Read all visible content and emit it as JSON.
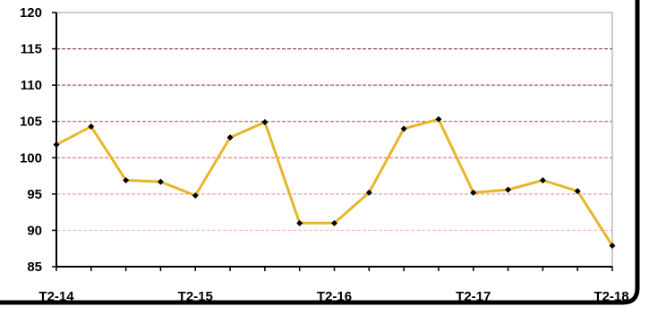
{
  "chart_data": {
    "type": "line",
    "title": "",
    "xlabel": "",
    "ylabel": "",
    "ylim": [
      85,
      120
    ],
    "yticks": [
      85,
      90,
      95,
      100,
      105,
      110,
      115,
      120
    ],
    "x_tick_labels": [
      {
        "index": 0,
        "label": "T2-14"
      },
      {
        "index": 4,
        "label": "T2-15"
      },
      {
        "index": 8,
        "label": "T2-16"
      },
      {
        "index": 12,
        "label": "T2-17"
      },
      {
        "index": 16,
        "label": "T2-18"
      }
    ],
    "series": [
      {
        "values": [
          101.8,
          104.3,
          96.9,
          96.7,
          94.8,
          102.8,
          104.9,
          91.0,
          91.0,
          95.2,
          104.0,
          105.3,
          95.2,
          95.6,
          96.9,
          95.4,
          87.9
        ]
      }
    ],
    "line_color": "#e8b52a",
    "marker_color": "#000000",
    "grid": true,
    "gridline_colors": {
      "90": "#f2b8b8",
      "95": "#e88484",
      "100": "#d85c5c",
      "105": "#cc3d3d",
      "110": "#a82a2a",
      "115": "#8c1f1f",
      "120": "#999999"
    }
  }
}
